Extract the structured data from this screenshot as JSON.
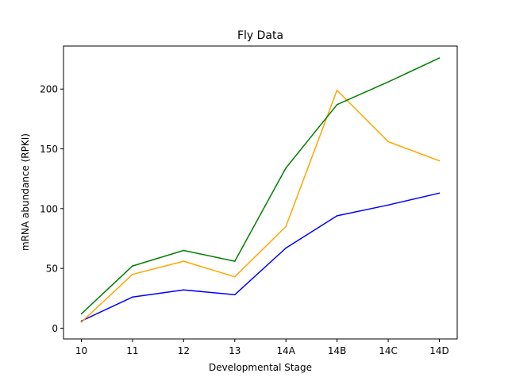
{
  "chart_data": {
    "type": "line",
    "title": "Fly Data",
    "xlabel": "Developmental Stage",
    "ylabel": "mRNA abundance (RPKI)",
    "categories": [
      "10",
      "11",
      "12",
      "13",
      "14A",
      "14B",
      "14C",
      "14D"
    ],
    "ylim": [
      -9,
      236
    ],
    "yticks": [
      0,
      50,
      100,
      150,
      200
    ],
    "grid": false,
    "series": [
      {
        "color": "#0000ff",
        "values": [
          6,
          26,
          32,
          28,
          67,
          94,
          103,
          113
        ]
      },
      {
        "color": "#ffa500",
        "values": [
          5,
          45,
          56,
          43,
          85,
          199,
          156,
          140
        ]
      },
      {
        "color": "#008000",
        "values": [
          12,
          52,
          65,
          56,
          134,
          187,
          206,
          226
        ]
      }
    ]
  }
}
